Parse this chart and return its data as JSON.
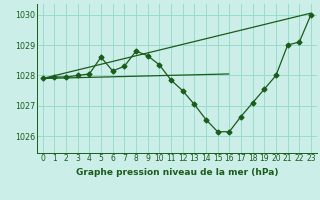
{
  "bg_color": "#cceee8",
  "grid_color": "#99ddcc",
  "line_color": "#1a5c1a",
  "xlim": [
    -0.5,
    23.5
  ],
  "ylim": [
    1025.45,
    1030.35
  ],
  "yticks": [
    1026,
    1027,
    1028,
    1029,
    1030
  ],
  "xticks": [
    0,
    1,
    2,
    3,
    4,
    5,
    6,
    7,
    8,
    9,
    10,
    11,
    12,
    13,
    14,
    15,
    16,
    17,
    18,
    19,
    20,
    21,
    22,
    23
  ],
  "series1_x": [
    0,
    1,
    2,
    3,
    4,
    5,
    6,
    7,
    8,
    9,
    10,
    11,
    12,
    13,
    14,
    15,
    16,
    17,
    18,
    19,
    20,
    21,
    22,
    23
  ],
  "series1_y": [
    1027.9,
    1027.95,
    1027.95,
    1028.0,
    1028.05,
    1028.6,
    1028.15,
    1028.3,
    1028.8,
    1028.65,
    1028.35,
    1027.85,
    1027.5,
    1027.05,
    1026.55,
    1026.15,
    1026.15,
    1026.65,
    1027.1,
    1027.55,
    1028.0,
    1029.0,
    1029.1,
    1030.0
  ],
  "series2_x": [
    0,
    23
  ],
  "series2_y": [
    1027.9,
    1030.05
  ],
  "series3_x": [
    0,
    16
  ],
  "series3_y": [
    1027.9,
    1028.05
  ],
  "xlabel_text": "Graphe pression niveau de la mer (hPa)",
  "marker": "D",
  "markersize": 2.5,
  "tick_fontsize": 5.5,
  "xlabel_fontsize": 6.5
}
